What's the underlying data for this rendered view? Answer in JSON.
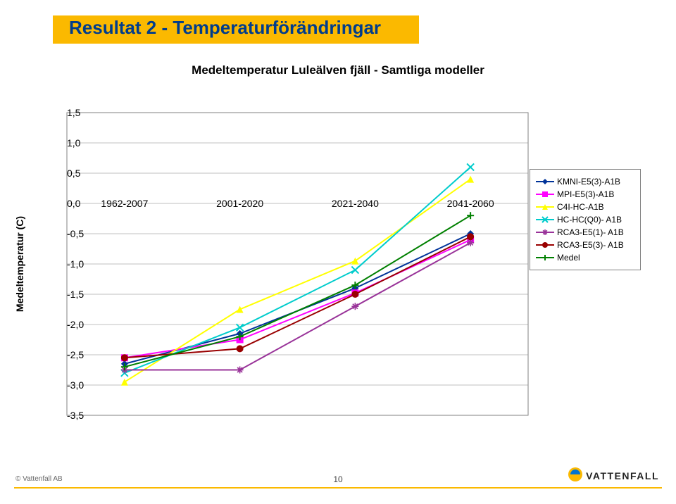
{
  "header": {
    "title": "Resultat 2 - Temperaturförändringar",
    "title_color": "#003c8c",
    "bar_color": "#fbb900"
  },
  "chart": {
    "type": "line",
    "subtitle": "Medeltemperatur Luleälven fjäll - Samtliga modeller",
    "ylabel": "Medeltemperatur (C)",
    "label_fontsize": 14,
    "categories": [
      "1962-2007",
      "2001-2020",
      "2021-2040",
      "2041-2060"
    ],
    "ylim": [
      -3.5,
      1.5
    ],
    "ytick_step": 0.5,
    "plot_bg_color": "#ffffff",
    "grid_color": "#808080",
    "border_color": "#808080",
    "series": [
      {
        "name": "KMNI-E5(3)-A1B",
        "color": "#003399",
        "marker": "diamond",
        "values": [
          -2.65,
          -2.15,
          -1.4,
          -0.5
        ]
      },
      {
        "name": "MPI-E5(3)-A1B",
        "color": "#ff00ff",
        "marker": "square",
        "values": [
          -2.55,
          -2.25,
          -1.48,
          -0.6
        ]
      },
      {
        "name": "C4I-HC-A1B",
        "color": "#ffff00",
        "marker": "triangle",
        "values": [
          -2.95,
          -1.75,
          -0.95,
          0.4
        ]
      },
      {
        "name": "HC-HC(Q0)- A1B",
        "color": "#00cccc",
        "marker": "x",
        "values": [
          -2.8,
          -2.05,
          -1.1,
          0.6
        ]
      },
      {
        "name": "RCA3-E5(1)- A1B",
        "color": "#993399",
        "marker": "asterisk",
        "values": [
          -2.75,
          -2.75,
          -1.7,
          -0.65
        ]
      },
      {
        "name": "RCA3-E5(3)- A1B",
        "color": "#990000",
        "marker": "circle",
        "values": [
          -2.55,
          -2.4,
          -1.5,
          -0.55
        ]
      },
      {
        "name": "Medel",
        "color": "#008000",
        "marker": "plus",
        "values": [
          -2.7,
          -2.2,
          -1.35,
          -0.2
        ]
      }
    ],
    "legend": {
      "box_border": "#7f7f7f",
      "fontsize": 12
    }
  },
  "footer": {
    "copyright": "© Vattenfall AB",
    "page": "10",
    "logo_text": "VATTENFALL",
    "rule_color": "#fbb900"
  }
}
